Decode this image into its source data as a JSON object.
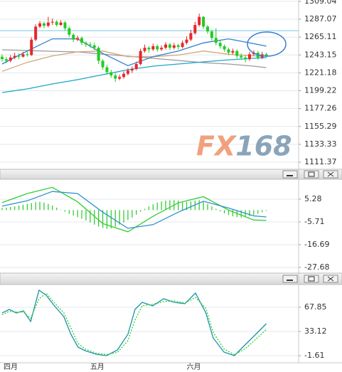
{
  "chart_data": [
    {
      "type": "candlestick",
      "xlim": [
        -0.5,
        70.7
      ],
      "ylim": [
        1103.5,
        1310.7
      ],
      "yticks": [
        1309.04,
        1287.07,
        1265.11,
        1243.15,
        1221.18,
        1199.22,
        1177.26,
        1155.29,
        1133.33,
        1111.37
      ],
      "grid": true,
      "up_color": "#e8262a",
      "down_color": "#22cc22",
      "watermark": "FX168",
      "hline": {
        "value": 1273,
        "color": "#8fd6e6"
      },
      "ohlc": [
        [
          1241,
          1244,
          1235,
          1238
        ],
        [
          1238,
          1241,
          1233,
          1236
        ],
        [
          1236,
          1243,
          1234,
          1240
        ],
        [
          1240,
          1246,
          1238,
          1242
        ],
        [
          1242,
          1245,
          1238,
          1241
        ],
        [
          1241,
          1247,
          1240,
          1244
        ],
        [
          1244,
          1248,
          1241,
          1243
        ],
        [
          1243,
          1265,
          1242,
          1262
        ],
        [
          1262,
          1281,
          1260,
          1278
        ],
        [
          1278,
          1285,
          1276,
          1282
        ],
        [
          1282,
          1284,
          1276,
          1279
        ],
        [
          1279,
          1290,
          1277,
          1283
        ],
        [
          1283,
          1288,
          1280,
          1284
        ],
        [
          1284,
          1286,
          1278,
          1280
        ],
        [
          1280,
          1286,
          1279,
          1283
        ],
        [
          1283,
          1285,
          1273,
          1276
        ],
        [
          1276,
          1278,
          1265,
          1268
        ],
        [
          1268,
          1270,
          1259,
          1262
        ],
        [
          1262,
          1267,
          1260,
          1264
        ],
        [
          1264,
          1266,
          1255,
          1258
        ],
        [
          1258,
          1260,
          1253,
          1256
        ],
        [
          1256,
          1259,
          1252,
          1255
        ],
        [
          1255,
          1258,
          1249,
          1252
        ],
        [
          1252,
          1254,
          1232,
          1236
        ],
        [
          1236,
          1238,
          1225,
          1228
        ],
        [
          1228,
          1231,
          1219,
          1222
        ],
        [
          1222,
          1225,
          1215,
          1218
        ],
        [
          1218,
          1221,
          1210,
          1214
        ],
        [
          1214,
          1219,
          1212,
          1216
        ],
        [
          1216,
          1223,
          1214,
          1220
        ],
        [
          1220,
          1227,
          1218,
          1224
        ],
        [
          1224,
          1229,
          1221,
          1226
        ],
        [
          1226,
          1235,
          1224,
          1232
        ],
        [
          1232,
          1251,
          1230,
          1248
        ],
        [
          1248,
          1256,
          1246,
          1252
        ],
        [
          1252,
          1254,
          1246,
          1250
        ],
        [
          1250,
          1257,
          1248,
          1254
        ],
        [
          1254,
          1256,
          1247,
          1250
        ],
        [
          1250,
          1255,
          1248,
          1252
        ],
        [
          1252,
          1259,
          1250,
          1256
        ],
        [
          1256,
          1258,
          1249,
          1252
        ],
        [
          1252,
          1258,
          1250,
          1255
        ],
        [
          1255,
          1257,
          1250,
          1253
        ],
        [
          1253,
          1261,
          1251,
          1258
        ],
        [
          1258,
          1266,
          1256,
          1262
        ],
        [
          1262,
          1274,
          1260,
          1270
        ],
        [
          1270,
          1284,
          1268,
          1280
        ],
        [
          1280,
          1294,
          1278,
          1290
        ],
        [
          1290,
          1291,
          1275,
          1278
        ],
        [
          1278,
          1280,
          1269,
          1272
        ],
        [
          1272,
          1274,
          1261,
          1264
        ],
        [
          1264,
          1276,
          1255,
          1258
        ],
        [
          1258,
          1261,
          1251,
          1254
        ],
        [
          1254,
          1256,
          1247,
          1250
        ],
        [
          1250,
          1252,
          1243,
          1246
        ],
        [
          1246,
          1251,
          1244,
          1248
        ],
        [
          1248,
          1250,
          1239,
          1242
        ],
        [
          1242,
          1245,
          1237,
          1240
        ],
        [
          1240,
          1243,
          1234,
          1238
        ],
        [
          1238,
          1247,
          1236,
          1244
        ],
        [
          1244,
          1249,
          1242,
          1246
        ],
        [
          1246,
          1248,
          1237,
          1240
        ],
        [
          1240,
          1247,
          1238,
          1244
        ],
        [
          1244,
          1246,
          1240,
          1242
        ]
      ],
      "x": [
        0,
        6,
        12,
        18,
        24,
        30,
        36,
        42,
        48,
        54,
        60,
        63
      ],
      "series": [
        {
          "color": "#9a9a9a",
          "values": [
            1249.5,
            1248.6,
            1247.7,
            1246.9,
            1244.2,
            1241.6,
            1239,
            1236.4,
            1233.7,
            1232,
            1229.4,
            1227.6
          ]
        },
        {
          "color": "#d2a679",
          "values": [
            1223,
            1234,
            1242,
            1247,
            1248,
            1241,
            1241,
            1243,
            1248,
            1244,
            1242,
            1242
          ]
        },
        {
          "color": "#1aa7c9",
          "values": [
            1197,
            1201.4,
            1207.5,
            1212.8,
            1218.9,
            1225,
            1229.4,
            1232,
            1234.6,
            1237.2,
            1239,
            1239.9
          ]
        },
        {
          "color": "#2f7fd0",
          "values": [
            1232,
            1248,
            1263,
            1263,
            1245,
            1230,
            1241,
            1248,
            1258,
            1263,
            1257,
            1254
          ]
        }
      ]
    },
    {
      "type": "macd",
      "xlim": [
        -0.5,
        70.7
      ],
      "ylim": [
        -30.1,
        14.9
      ],
      "yticks": [
        5.28,
        -5.71,
        -16.69,
        -27.68
      ],
      "grid": true,
      "bar_color": "#33cc33",
      "bars": [
        1.0,
        1.2,
        1.5,
        1.8,
        2.2,
        2.6,
        3.0,
        3.4,
        3.8,
        4.0,
        3.6,
        3.0,
        2.2,
        1.2,
        0.2,
        -0.8,
        -1.8,
        -2.6,
        -3.4,
        -4.2,
        -5.0,
        -6.0,
        -7.0,
        -8.0,
        -8.6,
        -9.0,
        -8.8,
        -8.0,
        -7.0,
        -6.0,
        -4.8,
        -3.6,
        -2.2,
        -0.8,
        0.6,
        1.8,
        2.8,
        3.6,
        4.2,
        4.6,
        4.8,
        4.8,
        4.6,
        4.2,
        4.0,
        4.2,
        4.6,
        4.8,
        4.0,
        3.0,
        1.8,
        0.6,
        -0.6,
        -1.6,
        -2.4,
        -3.0,
        -3.4,
        -3.6,
        -3.4,
        -3.0,
        -2.4,
        -1.8,
        -1.0,
        -0.4
      ],
      "x": [
        0,
        6,
        12,
        18,
        24,
        30,
        36,
        42,
        48,
        54,
        60,
        63
      ],
      "series": [
        {
          "color": "#33cc33",
          "values": [
            3.6,
            8,
            11,
            4,
            -6.5,
            -10.5,
            -3,
            3.5,
            6.5,
            0,
            -4.8,
            -5
          ]
        },
        {
          "color": "#2f8fd0",
          "values": [
            1.9,
            4.5,
            9,
            8,
            -1,
            -8.8,
            -7,
            -1,
            4.3,
            1,
            -2.8,
            -3.3
          ]
        }
      ]
    },
    {
      "type": "line",
      "xlim": [
        -0.5,
        70.7
      ],
      "ylim": [
        -11.8,
        100.5
      ],
      "yticks": [
        67.85,
        33.12,
        -1.61
      ],
      "grid": true,
      "categories": [
        "四月",
        null,
        null,
        null,
        null,
        null,
        null,
        null,
        null,
        null,
        null,
        null,
        null,
        null,
        null,
        null,
        null,
        null,
        null,
        null,
        null,
        "五月",
        null,
        null,
        null,
        null,
        null,
        null,
        null,
        null,
        null,
        null,
        null,
        null,
        null,
        null,
        null,
        null,
        null,
        null,
        null,
        null,
        null,
        null,
        "六月",
        null,
        null,
        null,
        null,
        null,
        null,
        null,
        null,
        null,
        null,
        null,
        null,
        null,
        null,
        null,
        null,
        null,
        null,
        null
      ],
      "x": [
        0,
        1.7,
        3.4,
        5.1,
        6.8,
        8.8,
        10.5,
        12.2,
        14.7,
        16.4,
        18.1,
        19.8,
        22.4,
        24.9,
        27.5,
        30,
        31.7,
        33.4,
        35.9,
        38.5,
        41,
        43.6,
        46.1,
        48.6,
        50.3,
        52.9,
        55.4,
        57.9,
        60.5,
        63
      ],
      "series": [
        {
          "color": "#1a93a8",
          "values": [
            59.6,
            64.8,
            59.6,
            62.7,
            47.4,
            92.3,
            85.2,
            71.9,
            54.5,
            29,
            10.7,
            5.6,
            0.5,
            -1.6,
            6.6,
            29,
            64.8,
            75,
            69.9,
            80.1,
            75,
            72.9,
            88.2,
            59.6,
            23.9,
            3.5,
            -1.6,
            13.7,
            29,
            44.3
          ]
        },
        {
          "color": "#33cc33",
          "dash": true,
          "values": [
            57,
            62,
            61,
            61,
            52,
            80,
            88,
            76,
            60,
            38,
            16,
            8,
            2,
            0,
            3,
            20,
            50,
            70,
            72,
            76,
            77,
            74,
            82,
            66,
            32,
            8,
            0,
            8,
            22,
            36
          ]
        }
      ]
    }
  ]
}
